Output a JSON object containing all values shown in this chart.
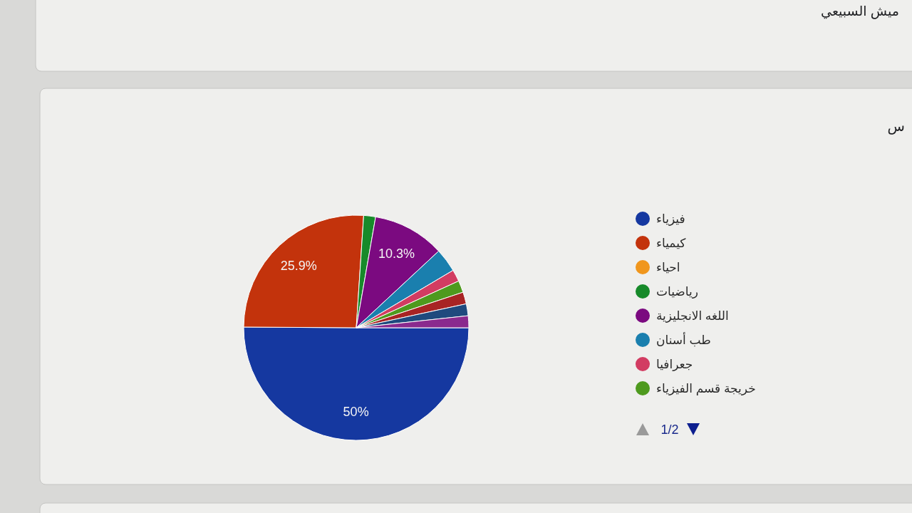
{
  "chart_data": {
    "type": "pie",
    "title": "س",
    "categories": [
      "فيزياء",
      "كيمياء",
      "احياء",
      "رياضيات",
      "اللغه الانجليزية",
      "طب أسنان",
      "جعرافيا",
      "خريجة قسم الفيزياء",
      null,
      null,
      null
    ],
    "values": [
      50,
      25.9,
      0,
      1.7,
      10.3,
      3.4,
      1.7,
      1.7,
      1.7,
      1.7,
      1.7
    ],
    "colors": [
      "#1538a0",
      "#c3330c",
      "#f0961c",
      "#178a2a",
      "#7b0a80",
      "#1a7fae",
      "#d23c62",
      "#4e9a1e",
      "#a82424",
      "#1f4a7e",
      "#8a2a8e"
    ],
    "value_labels": [
      "50%",
      "25.9%",
      null,
      null,
      "10.3%",
      null,
      null,
      null,
      null,
      null,
      null
    ],
    "legend": "right",
    "annotations": [
      "ميش السبيعي",
      "1/2"
    ]
  }
}
